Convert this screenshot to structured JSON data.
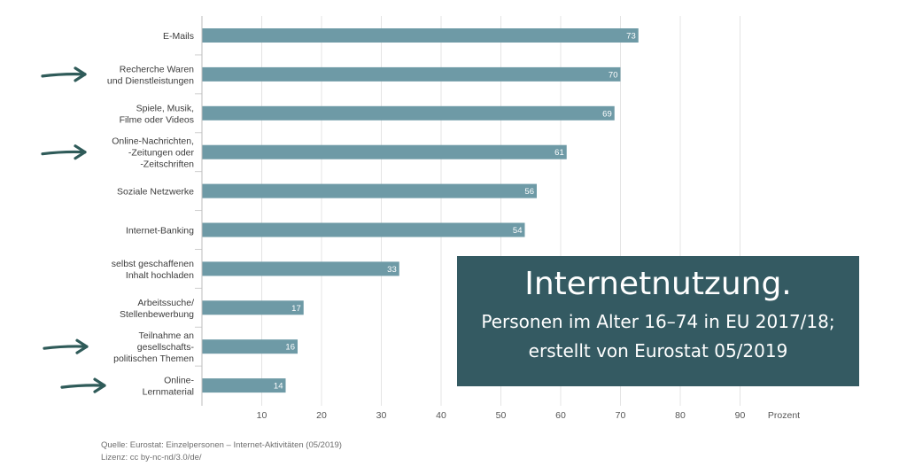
{
  "chart_data": {
    "type": "bar",
    "orientation": "horizontal",
    "categories": [
      "E-Mails",
      "Recherche Waren\nund Dienstleistungen",
      "Spiele, Musik,\nFilme oder Videos",
      "Online-Nachrichten,\n-Zeitungen oder\n-Zeitschriften",
      "Soziale Netzwerke",
      "Internet-Banking",
      "selbst geschaffenen\nInhalt hochladen",
      "Arbeitssuche/\nStellenbewerbung",
      "Teilnahme an\ngesellschafts-\npolitischen Themen",
      "Online-\nLernmaterial"
    ],
    "values": [
      73,
      70,
      69,
      61,
      56,
      54,
      33,
      17,
      16,
      14
    ],
    "marked_categories": [
      1,
      3,
      8,
      9
    ],
    "xlim": [
      0,
      100
    ],
    "xticks": [
      10,
      20,
      30,
      40,
      50,
      60,
      70,
      80,
      90
    ],
    "x_unit_label": "Prozent",
    "grid": true,
    "bar_color": "#6e9aa6",
    "arrow_color": "#2f5b59"
  },
  "info_box": {
    "title": "Internetnutzung.",
    "line1": "Personen im Alter 16–74 in EU 2017/18;",
    "line2": "erstellt von Eurostat 05/2019",
    "background": "#345a62"
  },
  "footer": {
    "source": "Quelle: Eurostat: Einzelpersonen – Internet-Aktivitäten (05/2019)",
    "license": "Lizenz: cc by-nc-nd/3.0/de/"
  }
}
